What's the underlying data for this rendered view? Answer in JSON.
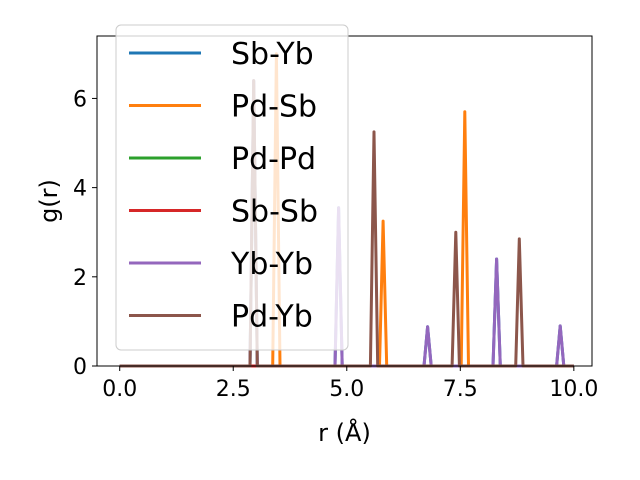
{
  "chart_data": {
    "type": "line",
    "xlabel": "r (Å)",
    "ylabel": "g(r)",
    "xlim": [
      -0.5,
      10.4
    ],
    "ylim": [
      0,
      7.4
    ],
    "xticks": [
      0.0,
      2.5,
      5.0,
      7.5,
      10.0
    ],
    "xtick_labels": [
      "0.0",
      "2.5",
      "5.0",
      "7.5",
      "10.0"
    ],
    "yticks": [
      0,
      2,
      4,
      6
    ],
    "ytick_labels": [
      "0",
      "2",
      "4",
      "6"
    ],
    "grid": false,
    "legend_position": "top-left",
    "peak_half_width": 0.08,
    "series": [
      {
        "name": "Sb-Yb",
        "color": "#1f77b4",
        "peaks": [
          [
            2.95,
            6.4
          ],
          [
            4.82,
            3.55
          ],
          [
            6.78,
            0.88
          ],
          [
            8.3,
            2.4
          ],
          [
            9.7,
            0.9
          ]
        ]
      },
      {
        "name": "Pd-Sb",
        "color": "#ff7f0e",
        "peaks": [
          [
            3.45,
            7.0
          ],
          [
            5.8,
            3.25
          ],
          [
            7.6,
            5.7
          ]
        ]
      },
      {
        "name": "Pd-Pd",
        "color": "#2ca02c",
        "peaks": []
      },
      {
        "name": "Sb-Sb",
        "color": "#d62728",
        "peaks": []
      },
      {
        "name": "Yb-Yb",
        "color": "#9467bd",
        "peaks": [
          [
            2.95,
            6.4
          ],
          [
            4.82,
            3.55
          ],
          [
            6.78,
            0.88
          ],
          [
            8.3,
            2.4
          ],
          [
            9.7,
            0.9
          ]
        ]
      },
      {
        "name": "Pd-Yb",
        "color": "#8c564b",
        "peaks": [
          [
            2.95,
            6.4
          ],
          [
            5.6,
            5.25
          ],
          [
            7.4,
            3.0
          ],
          [
            8.8,
            2.85
          ]
        ]
      }
    ]
  }
}
